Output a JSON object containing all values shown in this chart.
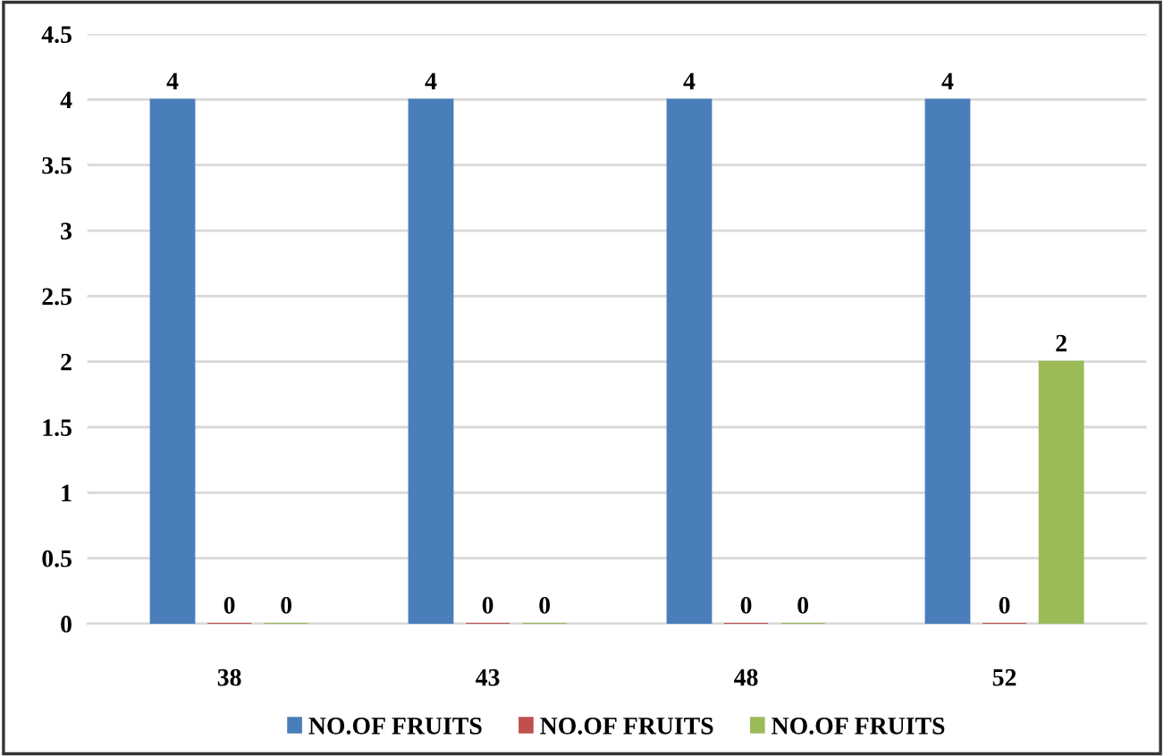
{
  "chart_data": {
    "type": "bar",
    "categories": [
      "38",
      "43",
      "48",
      "52"
    ],
    "series": [
      {
        "name": "NO.OF FRUITS",
        "color": "#4a7ebb",
        "values": [
          4,
          4,
          4,
          4
        ]
      },
      {
        "name": "NO.OF FRUITS",
        "color": "#c0504d",
        "values": [
          0,
          0,
          0,
          0
        ]
      },
      {
        "name": "NO.OF FRUITS",
        "color": "#9bbb59",
        "values": [
          0,
          0,
          0,
          2
        ]
      }
    ],
    "ylim": [
      0,
      4.5
    ],
    "yticks": [
      0,
      0.5,
      1,
      1.5,
      2,
      2.5,
      3,
      3.5,
      4,
      4.5
    ],
    "grid": "y",
    "legend": "bottom",
    "data_labels": true
  }
}
